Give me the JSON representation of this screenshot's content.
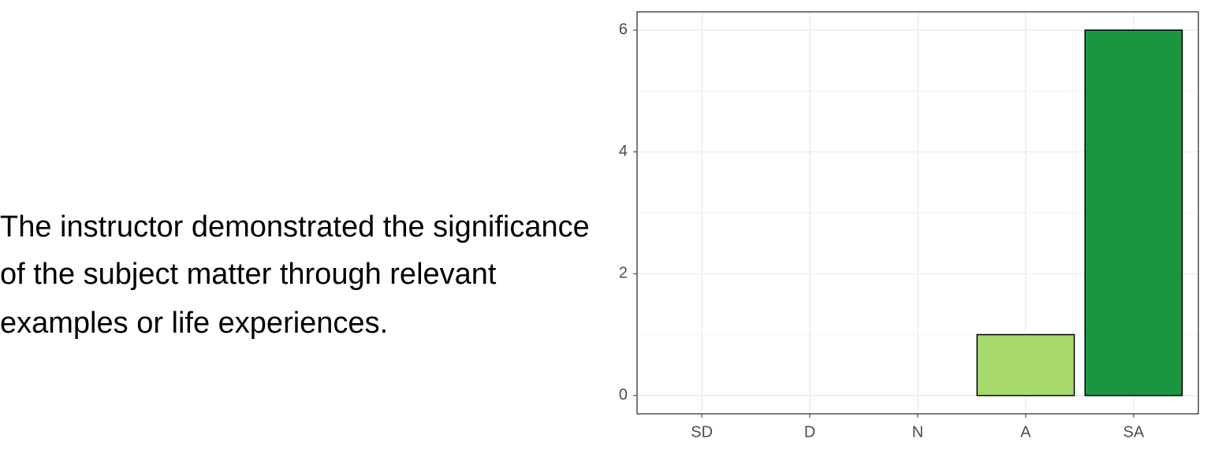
{
  "question_lines": [
    "The instructor demonstrated the significance",
    "of the subject matter through relevant",
    "examples or life experiences."
  ],
  "chart_data": {
    "type": "bar",
    "categories": [
      "SD",
      "D",
      "N",
      "A",
      "SA"
    ],
    "values": [
      0,
      0,
      0,
      1,
      6
    ],
    "colors": [
      "#d7191c",
      "#fdae61",
      "#ffffbf",
      "#a6d96a",
      "#1a9641"
    ],
    "ylim": [
      -0.3,
      6.3
    ],
    "yticks": [
      0,
      2,
      4,
      6
    ],
    "grid": true
  }
}
